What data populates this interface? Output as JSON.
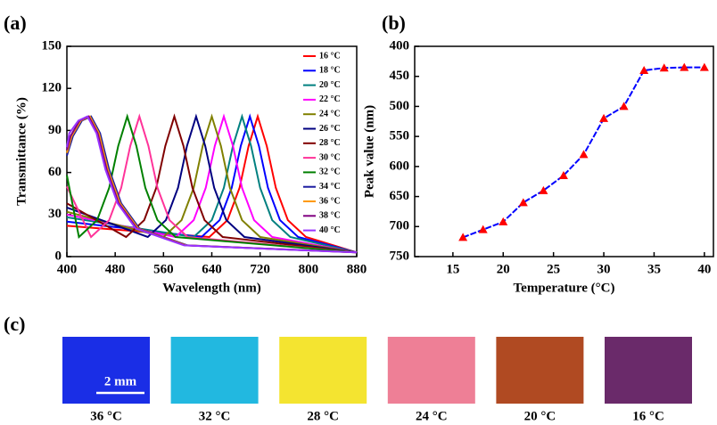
{
  "chart_data": [
    {
      "type": "line",
      "panel_label": "(a)",
      "xlabel": "Wavelength (nm)",
      "ylabel": "Transmittance (%)",
      "xlim": [
        400,
        880
      ],
      "xticks": [
        400,
        480,
        560,
        640,
        720,
        800,
        880
      ],
      "ylim": [
        0,
        150
      ],
      "yticks": [
        0,
        30,
        60,
        90,
        120,
        150
      ],
      "legend": "upper right",
      "series": [
        {
          "name": "16 °C",
          "color": "#ff0000",
          "x": [
            400,
            636,
            666,
            686,
            701,
            716,
            731,
            746,
            766,
            796,
            880
          ],
          "values": [
            22,
            14,
            26,
            49,
            79,
            100,
            79,
            49,
            26,
            14,
            3
          ]
        },
        {
          "name": "18 °C",
          "color": "#0000ff",
          "x": [
            400,
            623,
            653,
            673,
            688,
            703,
            718,
            733,
            753,
            783,
            880
          ],
          "values": [
            25,
            14,
            26,
            49,
            79,
            100,
            79,
            49,
            26,
            14,
            3
          ]
        },
        {
          "name": "20 °C",
          "color": "#008080",
          "x": [
            400,
            610,
            640,
            660,
            675,
            690,
            705,
            720,
            740,
            770,
            880
          ],
          "values": [
            28,
            14,
            26,
            49,
            79,
            100,
            79,
            49,
            26,
            14,
            3
          ]
        },
        {
          "name": "22 °C",
          "color": "#ff00ff",
          "x": [
            400,
            580,
            610,
            630,
            645,
            660,
            675,
            690,
            710,
            740,
            880
          ],
          "values": [
            30,
            14,
            26,
            49,
            79,
            100,
            79,
            49,
            26,
            14,
            3
          ]
        },
        {
          "name": "24 °C",
          "color": "#808000",
          "x": [
            400,
            560,
            590,
            610,
            625,
            640,
            655,
            670,
            690,
            720,
            880
          ],
          "values": [
            32,
            14,
            26,
            49,
            79,
            100,
            79,
            49,
            26,
            14,
            3
          ]
        },
        {
          "name": "26 °C",
          "color": "#000080",
          "x": [
            400,
            534,
            564,
            584,
            599,
            614,
            629,
            644,
            664,
            694,
            880
          ],
          "values": [
            35,
            14,
            26,
            49,
            79,
            100,
            79,
            49,
            26,
            14,
            3
          ]
        },
        {
          "name": "28 °C",
          "color": "#800000",
          "x": [
            400,
            498,
            528,
            548,
            563,
            578,
            593,
            608,
            628,
            658,
            880
          ],
          "values": [
            38,
            14,
            26,
            49,
            79,
            100,
            79,
            49,
            26,
            14,
            3
          ]
        },
        {
          "name": "30 °C",
          "color": "#ff3399",
          "x": [
            400,
            440,
            470,
            490,
            505,
            520,
            535,
            550,
            570,
            600,
            880
          ],
          "values": [
            50,
            14,
            26,
            49,
            79,
            100,
            79,
            49,
            26,
            14,
            3
          ]
        },
        {
          "name": "32 °C",
          "color": "#008000",
          "x": [
            400,
            420,
            450,
            470,
            485,
            500,
            515,
            530,
            550,
            580,
            880
          ],
          "values": [
            58,
            14,
            26,
            49,
            79,
            100,
            79,
            49,
            26,
            14,
            3
          ]
        },
        {
          "name": "34 °C",
          "color": "#1a1aa0",
          "x": [
            400,
            410,
            425,
            440,
            455,
            470,
            490,
            520,
            600,
            880
          ],
          "values": [
            72,
            86,
            97,
            100,
            88,
            62,
            38,
            20,
            8,
            3
          ]
        },
        {
          "name": "36 °C",
          "color": "#ff9900",
          "x": [
            400,
            408,
            423,
            438,
            453,
            468,
            488,
            518,
            598,
            880
          ],
          "values": [
            74,
            86,
            97,
            100,
            88,
            62,
            38,
            20,
            8,
            3
          ]
        },
        {
          "name": "38 °C",
          "color": "#800080",
          "x": [
            400,
            406,
            421,
            436,
            451,
            466,
            486,
            516,
            596,
            880
          ],
          "values": [
            76,
            86,
            97,
            100,
            88,
            62,
            38,
            20,
            8,
            3
          ]
        },
        {
          "name": "40 °C",
          "color": "#9933ff",
          "x": [
            400,
            404,
            419,
            434,
            449,
            464,
            484,
            514,
            594,
            880
          ],
          "values": [
            78,
            88,
            97,
            100,
            88,
            62,
            38,
            20,
            8,
            3
          ]
        }
      ]
    },
    {
      "type": "line",
      "panel_label": "(b)",
      "xlabel": "Temperature (°C)",
      "ylabel": "Peak value (nm)",
      "xlim": [
        11.2,
        40.9
      ],
      "xticks": [
        15,
        20,
        25,
        30,
        35,
        40
      ],
      "ylim": [
        750,
        400
      ],
      "yticks": [
        400,
        450,
        500,
        550,
        600,
        650,
        700,
        750
      ],
      "x": [
        16,
        18,
        20,
        22,
        24,
        26,
        28,
        30,
        32,
        34,
        36,
        38,
        40
      ],
      "series": [
        {
          "color": "#0000ff",
          "marker": "triangle",
          "marker_color": "#ff0000",
          "values": [
            718,
            705,
            692,
            660,
            640,
            615,
            580,
            520,
            500,
            440,
            436,
            435,
            435
          ]
        }
      ]
    }
  ],
  "panel_c": {
    "label": "(c)",
    "scale_bar": "2 mm",
    "swatches": [
      {
        "label": "36 °C",
        "color": "#1a2ee6"
      },
      {
        "label": "32 °C",
        "color": "#22b8e0"
      },
      {
        "label": "28 °C",
        "color": "#f4e430"
      },
      {
        "label": "24 °C",
        "color": "#ee7f96"
      },
      {
        "label": "20 °C",
        "color": "#b04a22"
      },
      {
        "label": "16 °C",
        "color": "#6a2a6a"
      }
    ]
  }
}
